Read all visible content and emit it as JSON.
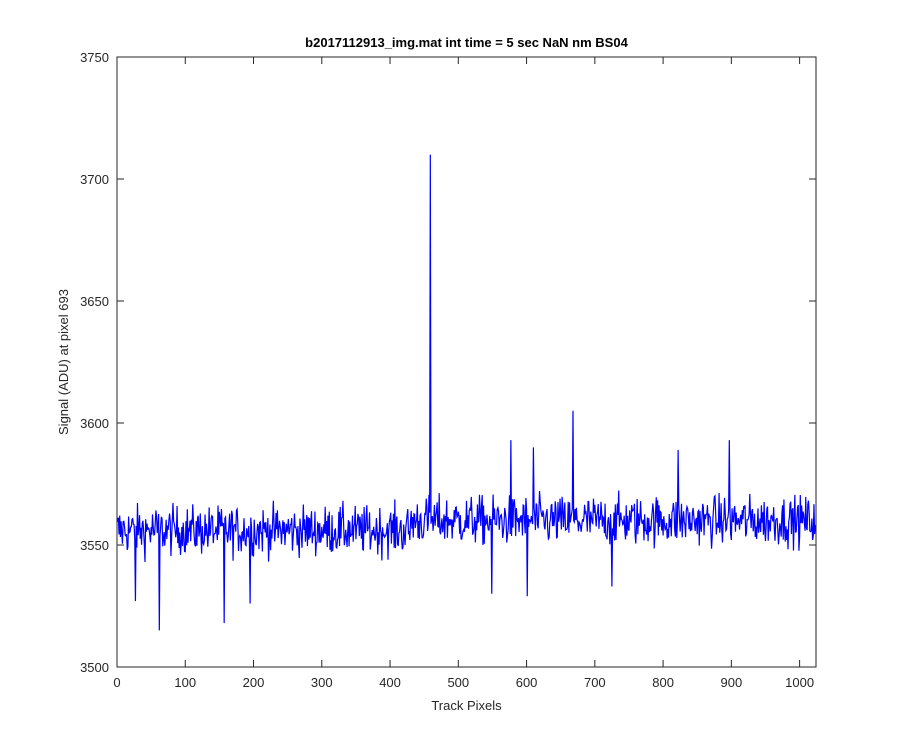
{
  "figure": {
    "background": "#ffffff"
  },
  "chart_data": {
    "type": "line",
    "title": "b2017112913_img.mat int time = 5 sec  NaN nm BS04",
    "xlabel": "Track Pixels",
    "ylabel": "Signal (ADU) at pixel 693",
    "xlim": [
      0,
      1024
    ],
    "ylim": [
      3500,
      3750
    ],
    "xticks": [
      0,
      100,
      200,
      300,
      400,
      500,
      600,
      700,
      800,
      900,
      1000
    ],
    "yticks": [
      3500,
      3550,
      3600,
      3650,
      3700,
      3750
    ],
    "grid": false,
    "legend": "none",
    "series": [
      {
        "color": "#0000ff",
        "n_points": 1024,
        "noise_baseline": 3556,
        "noise_amplitude": 8,
        "spikes": [
          {
            "x": 459,
            "y": 3710
          },
          {
            "x": 668,
            "y": 3605
          },
          {
            "x": 62,
            "y": 3515
          },
          {
            "x": 157,
            "y": 3518
          },
          {
            "x": 27,
            "y": 3527
          },
          {
            "x": 195,
            "y": 3526
          },
          {
            "x": 549,
            "y": 3530
          },
          {
            "x": 601,
            "y": 3529
          },
          {
            "x": 725,
            "y": 3533
          },
          {
            "x": 897,
            "y": 3593
          },
          {
            "x": 822,
            "y": 3589
          },
          {
            "x": 577,
            "y": 3593
          },
          {
            "x": 610,
            "y": 3590
          }
        ]
      }
    ]
  }
}
